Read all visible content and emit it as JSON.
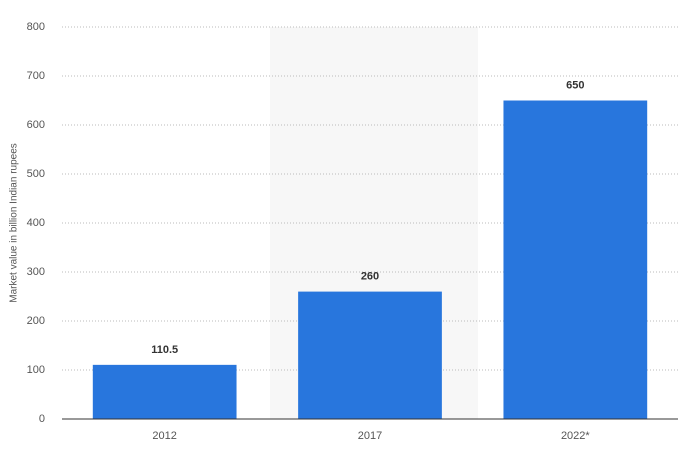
{
  "chart_data": {
    "type": "bar",
    "y_label": "Market value in billion Indian rupees",
    "categories": [
      "2012",
      "2017",
      "2022*"
    ],
    "values": [
      110.5,
      260,
      650
    ],
    "color": "#2876dd",
    "ylim": [
      0,
      800
    ],
    "yticks": [
      0,
      100,
      200,
      300,
      400,
      500,
      600,
      700,
      800
    ],
    "grid": true,
    "data_labels": true
  }
}
